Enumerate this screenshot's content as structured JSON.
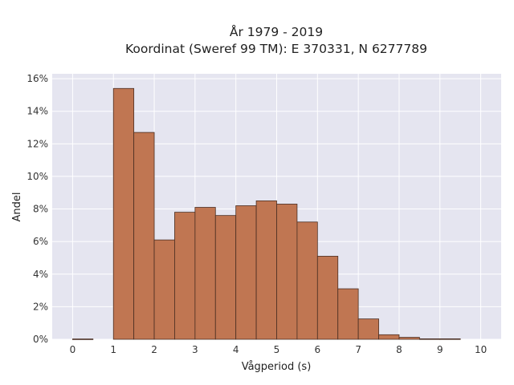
{
  "chart_data": {
    "type": "bar",
    "title_lines": [
      "År 1979 - 2019",
      "Koordinat (Sweref 99 TM): E 370331, N 6277789"
    ],
    "xlabel": "Vågperiod (s)",
    "ylabel": "Andel",
    "bin_width": 0.5,
    "bins_start": [
      0,
      0.5,
      1,
      1.5,
      2,
      2.5,
      3,
      3.5,
      4,
      4.5,
      5,
      5.5,
      6,
      6.5,
      7,
      7.5,
      8,
      8.5,
      9,
      9.5
    ],
    "values": [
      0.02,
      0,
      15.4,
      12.7,
      6.1,
      7.8,
      8.1,
      7.6,
      8.2,
      8.5,
      8.3,
      7.2,
      5.1,
      3.1,
      1.25,
      0.28,
      0.12,
      0.03,
      0.03,
      0
    ],
    "xlim": [
      -0.5,
      10.5
    ],
    "ylim": [
      0,
      16.3
    ],
    "xticks": [
      0,
      1,
      2,
      3,
      4,
      5,
      6,
      7,
      8,
      9,
      10
    ],
    "yticks": [
      0,
      2,
      4,
      6,
      8,
      10,
      12,
      14,
      16
    ],
    "ytick_labels": [
      "0%",
      "2%",
      "4%",
      "6%",
      "8%",
      "10%",
      "12%",
      "14%",
      "16%"
    ],
    "grid": true,
    "colors": {
      "plot_bg": "#e5e5f0",
      "grid": "#ffffff",
      "bar_fill": "#c07652",
      "bar_edge": "#4a2e22"
    }
  }
}
